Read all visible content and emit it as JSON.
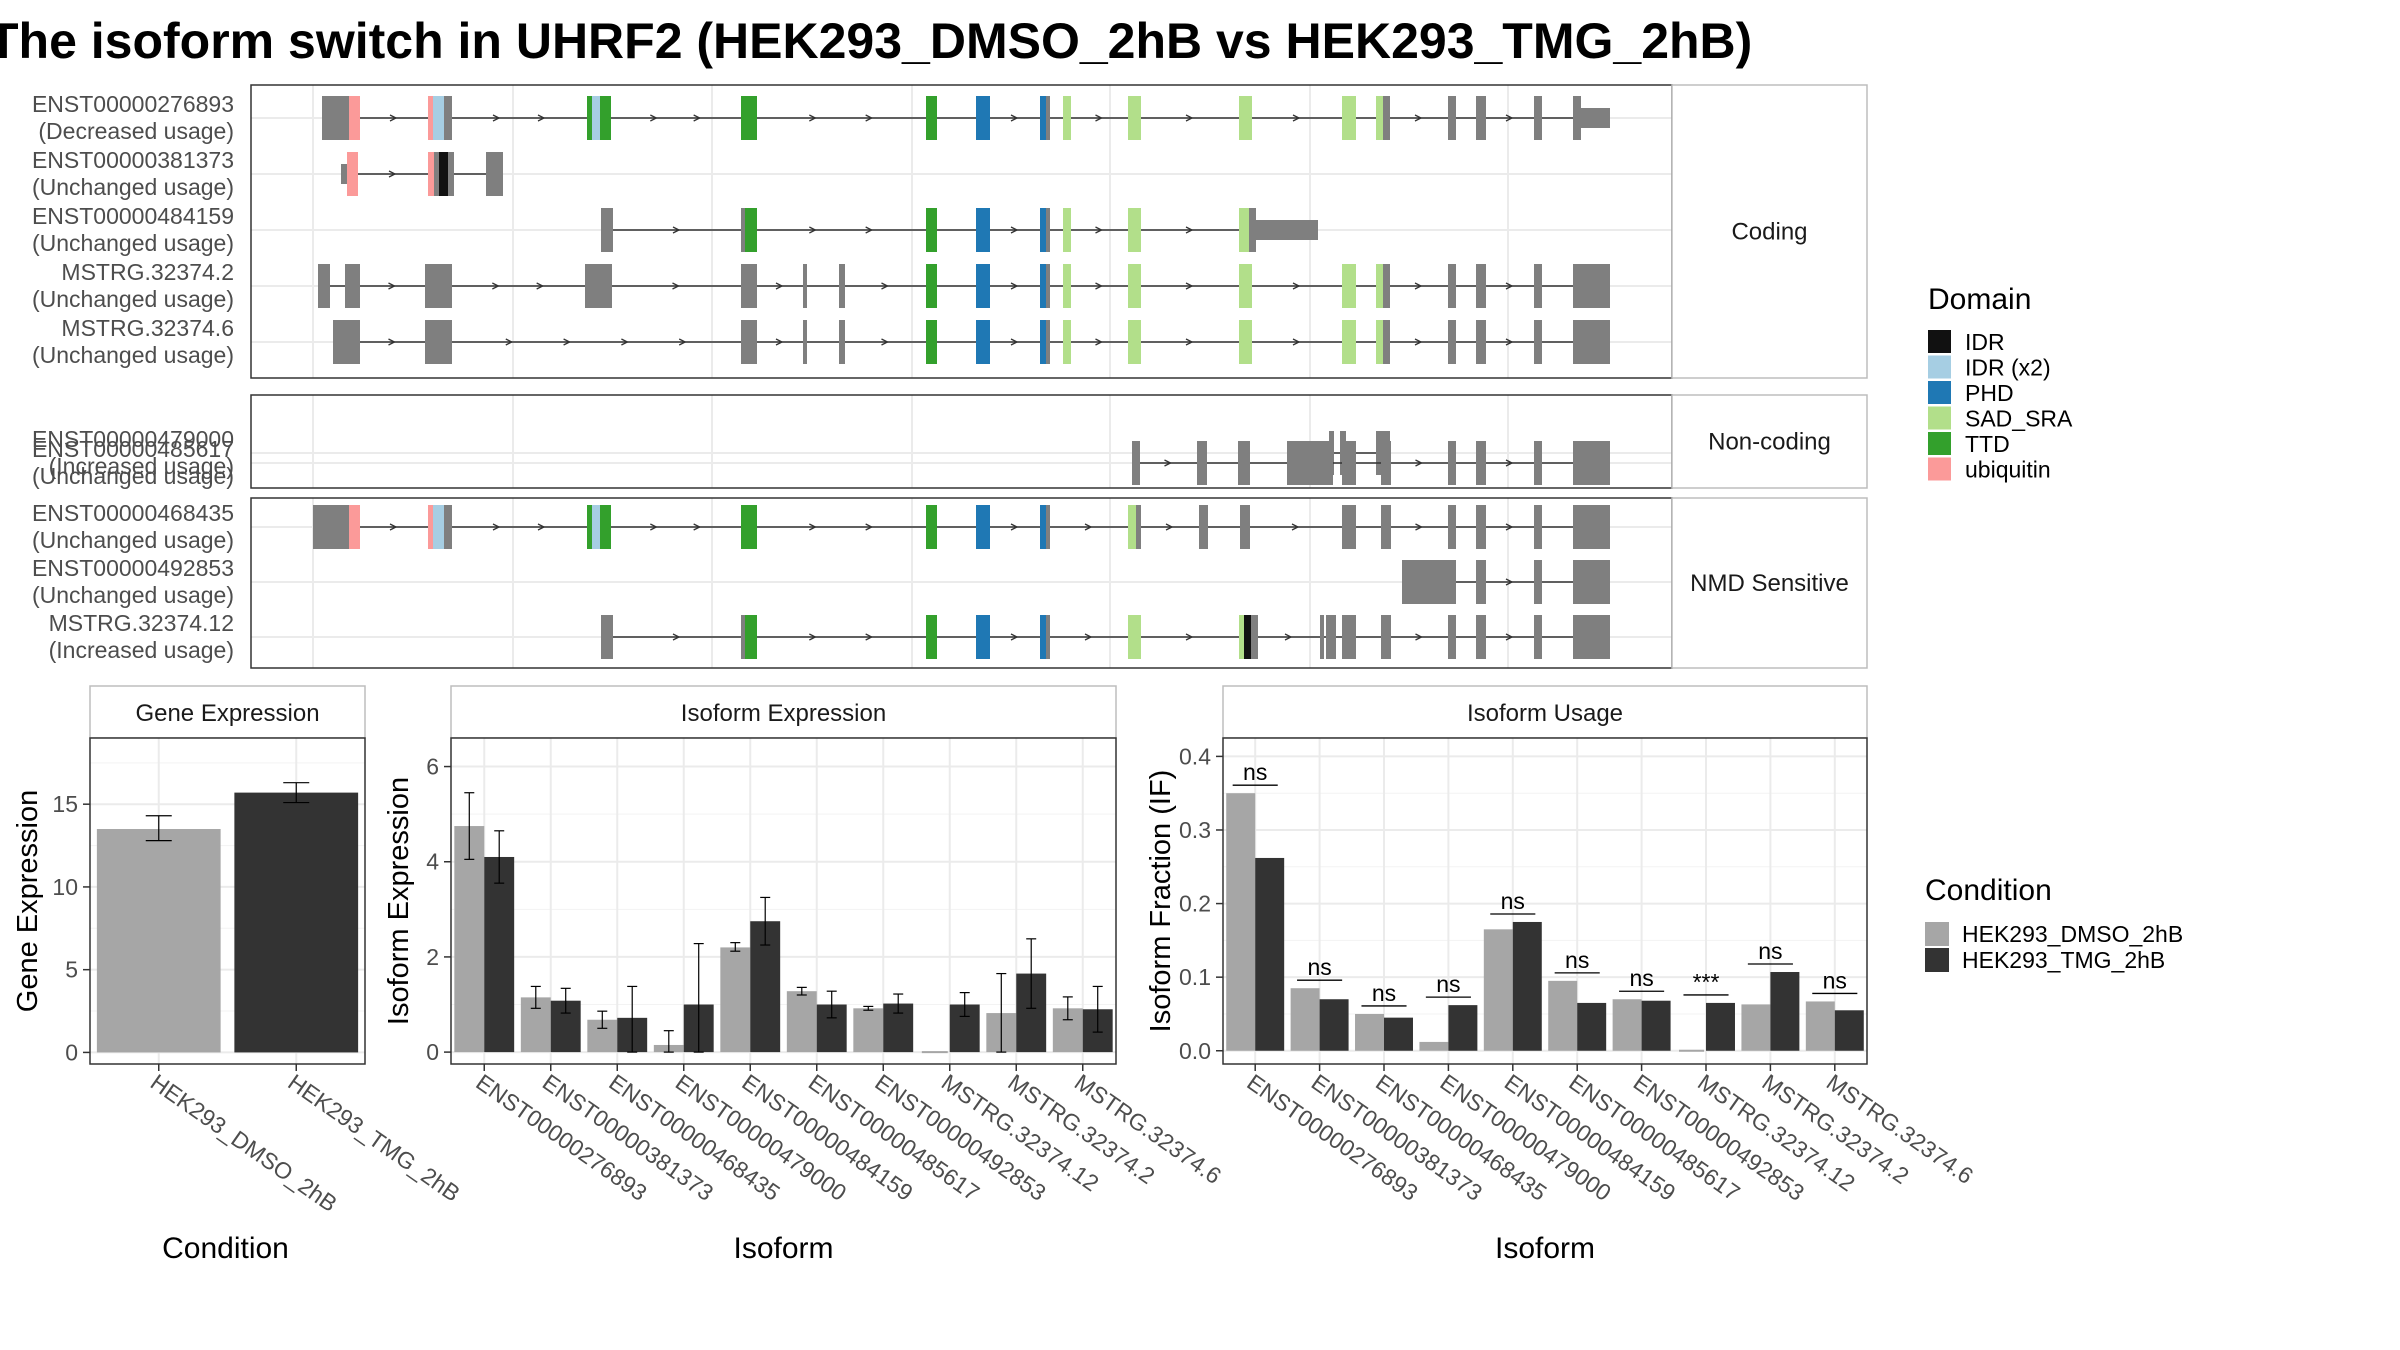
{
  "title": "The isoform switch in UHRF2 (HEK293_DMSO_2hB vs HEK293_TMG_2hB)",
  "domain_legend": {
    "title": "Domain",
    "items": [
      {
        "label": "IDR",
        "color": "#111111"
      },
      {
        "label": "IDR (x2)",
        "color": "#a6cee3"
      },
      {
        "label": "PHD",
        "color": "#1f78b4"
      },
      {
        "label": "SAD_SRA",
        "color": "#b2df8a"
      },
      {
        "label": "TTD",
        "color": "#33a02c"
      },
      {
        "label": "ubiquitin",
        "color": "#fb9a99"
      }
    ]
  },
  "condition_legend": {
    "title": "Condition",
    "items": [
      {
        "label": "HEK293_DMSO_2hB",
        "color": "#a6a6a6"
      },
      {
        "label": "HEK293_TMG_2hB",
        "color": "#333333"
      }
    ]
  },
  "transcript_panels": [
    {
      "label": "Coding",
      "transcripts": [
        {
          "id": "ENST00000276893",
          "usage": "(Decreased usage)"
        },
        {
          "id": "ENST00000381373",
          "usage": "(Unchanged usage)"
        },
        {
          "id": "ENST00000484159",
          "usage": "(Unchanged usage)"
        },
        {
          "id": "MSTRG.32374.2",
          "usage": "(Unchanged usage)"
        },
        {
          "id": "MSTRG.32374.6",
          "usage": "(Unchanged usage)"
        }
      ]
    },
    {
      "label": "Non-coding",
      "transcripts": [
        {
          "id": "ENST00000479000",
          "usage": "(Increased usage)"
        },
        {
          "id": "ENST00000485617",
          "usage": "(Unchanged usage)"
        }
      ]
    },
    {
      "label": "NMD Sensitive",
      "transcripts": [
        {
          "id": "ENST00000468435",
          "usage": "(Unchanged usage)"
        },
        {
          "id": "ENST00000492853",
          "usage": "(Unchanged usage)"
        },
        {
          "id": "MSTRG.32374.12",
          "usage": "(Increased usage)"
        }
      ]
    }
  ],
  "chart_data": [
    {
      "type": "bar",
      "title": "Gene Expression",
      "xlabel": "Condition",
      "ylabel": "Gene Expression",
      "ylim": [
        -0.7,
        19
      ],
      "yticks": [
        0,
        5,
        10,
        15
      ],
      "categories": [
        "HEK293_DMSO_2hB",
        "HEK293_TMG_2hB"
      ],
      "values": [
        13.5,
        15.7
      ],
      "errors": [
        [
          12.8,
          14.3
        ],
        [
          15.1,
          16.3
        ]
      ]
    },
    {
      "type": "bar",
      "title": "Isoform Expression",
      "xlabel": "Isoform",
      "ylabel": "Isoform Expression",
      "ylim": [
        -0.25,
        6.6
      ],
      "yticks": [
        0,
        2,
        4,
        6
      ],
      "categories": [
        "ENST00000276893",
        "ENST00000381373",
        "ENST00000468435",
        "ENST00000479000",
        "ENST00000484159",
        "ENST00000485617",
        "ENST00000492853",
        "MSTRG.32374.12",
        "MSTRG.32374.2",
        "MSTRG.32374.6"
      ],
      "series": [
        {
          "name": "HEK293_DMSO_2hB",
          "values": [
            4.75,
            1.15,
            0.68,
            0.15,
            2.2,
            1.28,
            0.92,
            0.0,
            0.82,
            0.92
          ],
          "errors": [
            [
              4.05,
              5.45
            ],
            [
              0.92,
              1.38
            ],
            [
              0.5,
              0.86
            ],
            [
              0.0,
              0.45
            ],
            [
              2.12,
              2.3
            ],
            [
              1.2,
              1.36
            ],
            [
              0.88,
              0.96
            ],
            [
              0.0,
              0.0
            ],
            [
              0.0,
              1.65
            ],
            [
              0.68,
              1.16
            ]
          ]
        },
        {
          "name": "HEK293_TMG_2hB",
          "values": [
            4.1,
            1.08,
            0.72,
            1.0,
            2.75,
            1.0,
            1.02,
            1.0,
            1.65,
            0.9
          ],
          "errors": [
            [
              3.55,
              4.65
            ],
            [
              0.82,
              1.34
            ],
            [
              0.0,
              1.38
            ],
            [
              0.0,
              2.28
            ],
            [
              2.25,
              3.25
            ],
            [
              0.72,
              1.28
            ],
            [
              0.82,
              1.22
            ],
            [
              0.75,
              1.25
            ],
            [
              0.92,
              2.38
            ],
            [
              0.42,
              1.38
            ]
          ]
        }
      ]
    },
    {
      "type": "bar",
      "title": "Isoform Usage",
      "xlabel": "Isoform",
      "ylabel": "Isoform Fraction (IF)",
      "ylim": [
        -0.018,
        0.425
      ],
      "yticks": [
        0.0,
        0.1,
        0.2,
        0.3,
        0.4
      ],
      "ytick_labels": [
        "0.0",
        "0.1",
        "0.2",
        "0.3",
        "0.4"
      ],
      "categories": [
        "ENST00000276893",
        "ENST00000381373",
        "ENST00000468435",
        "ENST00000479000",
        "ENST00000484159",
        "ENST00000485617",
        "ENST00000492853",
        "MSTRG.32374.12",
        "MSTRG.32374.2",
        "MSTRG.32374.6"
      ],
      "series": [
        {
          "name": "HEK293_DMSO_2hB",
          "values": [
            0.35,
            0.085,
            0.05,
            0.012,
            0.165,
            0.095,
            0.07,
            0.0,
            0.063,
            0.067
          ]
        },
        {
          "name": "HEK293_TMG_2hB",
          "values": [
            0.262,
            0.07,
            0.045,
            0.062,
            0.175,
            0.065,
            0.068,
            0.065,
            0.107,
            0.055
          ]
        }
      ],
      "significance": [
        "ns",
        "ns",
        "ns",
        "ns",
        "ns",
        "ns",
        "ns",
        "***",
        "ns",
        "ns"
      ]
    }
  ]
}
